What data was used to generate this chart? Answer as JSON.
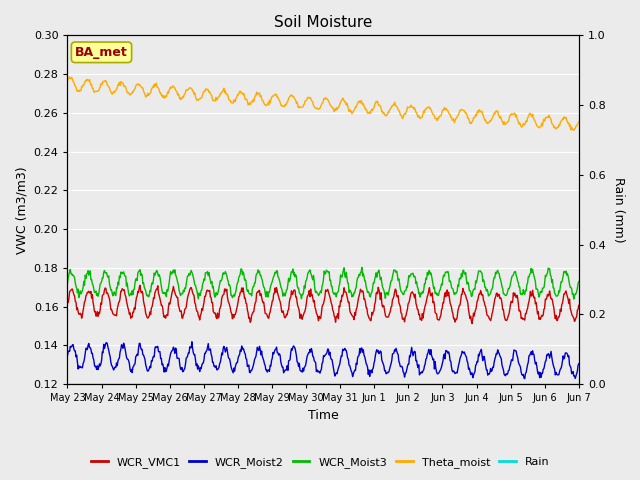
{
  "title": "Soil Moisture",
  "ylabel_left": "VWC (m3/m3)",
  "ylabel_right": "Rain (mm)",
  "xlabel": "Time",
  "ylim_left": [
    0.12,
    0.3
  ],
  "ylim_right": [
    0.0,
    1.0
  ],
  "yticks_left": [
    0.12,
    0.14,
    0.16,
    0.18,
    0.2,
    0.22,
    0.24,
    0.26,
    0.28,
    0.3
  ],
  "yticks_right": [
    0.0,
    0.2,
    0.4,
    0.6,
    0.8,
    1.0
  ],
  "background_color": "#ebebeb",
  "plot_bg_color": "#ebebeb",
  "grid_color": "white",
  "colors": {
    "WCR_VMC1": "#cc0000",
    "WCR_Moist2": "#0000cc",
    "WCR_Moist3": "#00bb00",
    "Theta_moist": "#ffaa00",
    "Rain": "#00dddd"
  },
  "annotation_text": "BA_met",
  "annotation_color": "#990000",
  "annotation_bg": "#ffff99",
  "annotation_edge": "#aaaa00",
  "n_days": 15,
  "points_per_day": 48,
  "figwidth": 6.4,
  "figheight": 4.8,
  "dpi": 100
}
